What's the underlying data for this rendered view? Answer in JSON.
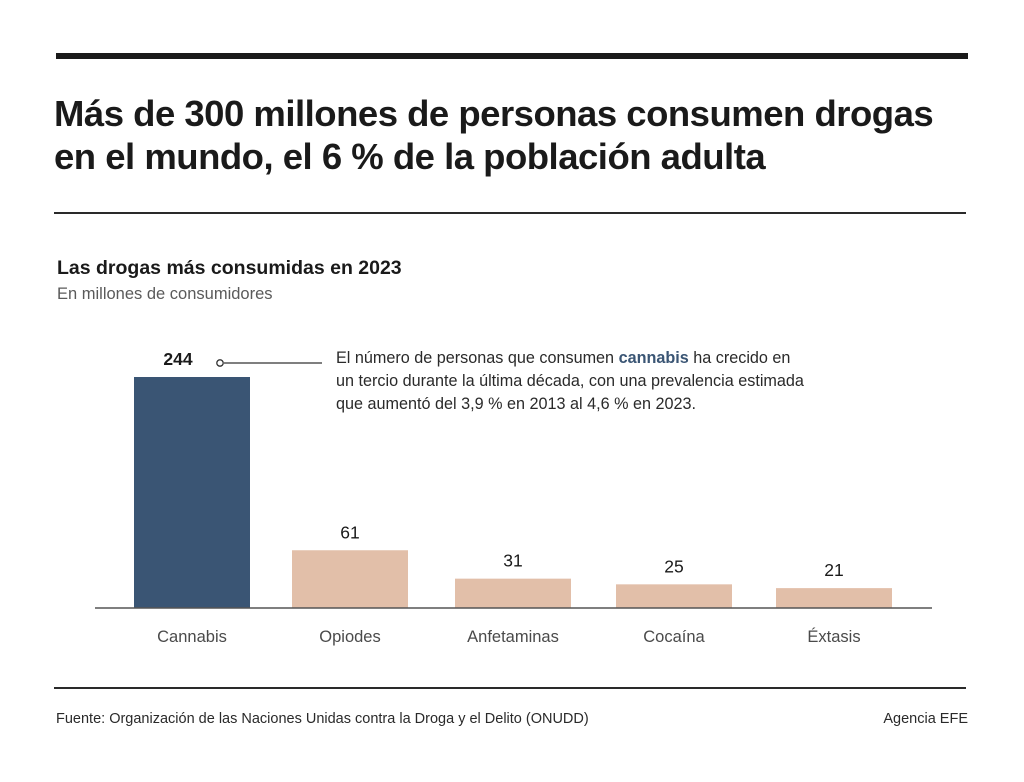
{
  "headline": {
    "line1": "Más de 300 millones de personas consumen drogas",
    "line2": "en el mundo, el 6 % de la población adulta"
  },
  "chart_data": {
    "type": "bar",
    "title": "Las drogas más consumidas en 2023",
    "subtitle": "En millones de consumidores",
    "categories": [
      "Cannabis",
      "Opiodes",
      "Anfetaminas",
      "Cocaína",
      "Éxtasis"
    ],
    "values": [
      244,
      61,
      31,
      25,
      21
    ],
    "colors": [
      "#3a5574",
      "#e2bfa9",
      "#e2bfa9",
      "#e2bfa9",
      "#e2bfa9"
    ],
    "ylim": [
      0,
      244
    ],
    "grid": false,
    "annotation": {
      "before": "El número de personas que consumen ",
      "highlight": "cannabis",
      "after": " ha crecido en un tercio durante la última década, con una prevalencia estimada que aumentó del 3,9 % en 2013 al 4,6 % en 2023."
    }
  },
  "footer": {
    "source": "Fuente: Organización de las Naciones Unidas contra la Droga y el Delito (ONUDD)",
    "credit": "Agencia EFE"
  }
}
